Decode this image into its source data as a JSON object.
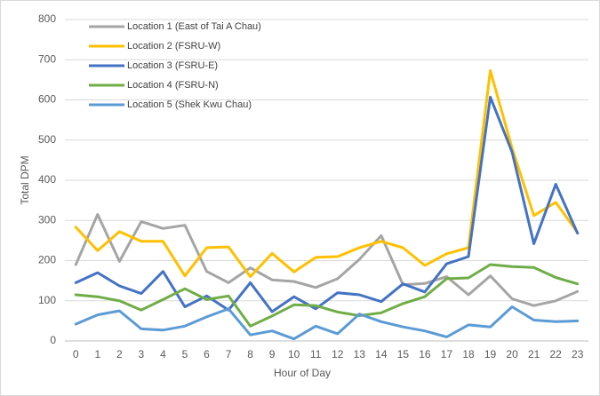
{
  "chart_data": {
    "type": "line",
    "x_label": "Hour of Day",
    "y_label": "Total DPM",
    "categories": [
      0,
      1,
      2,
      3,
      4,
      5,
      6,
      7,
      8,
      9,
      10,
      11,
      12,
      13,
      14,
      15,
      16,
      17,
      18,
      19,
      20,
      21,
      22,
      23
    ],
    "series": [
      {
        "name": "Location 1 (East of Tai A Chau)",
        "color": "#a5a5a5",
        "values": [
          190,
          315,
          198,
          297,
          280,
          288,
          173,
          145,
          182,
          152,
          148,
          133,
          155,
          203,
          262,
          140,
          143,
          160,
          115,
          162,
          105,
          88,
          100,
          123
        ]
      },
      {
        "name": "Location 2 (FSRU-W)",
        "color": "#ffc000",
        "values": [
          283,
          225,
          272,
          248,
          248,
          162,
          232,
          234,
          160,
          218,
          172,
          208,
          210,
          232,
          248,
          232,
          188,
          217,
          232,
          673,
          480,
          312,
          345,
          270
        ]
      },
      {
        "name": "Location 3 (FSRU-E)",
        "color": "#4472c4",
        "values": [
          145,
          170,
          137,
          118,
          173,
          85,
          112,
          77,
          145,
          73,
          110,
          80,
          120,
          115,
          98,
          142,
          122,
          192,
          210,
          607,
          470,
          242,
          390,
          268
        ]
      },
      {
        "name": "Location 4 (FSRU-N)",
        "color": "#70ad47",
        "values": [
          115,
          110,
          100,
          77,
          103,
          130,
          103,
          112,
          37,
          62,
          90,
          88,
          72,
          63,
          70,
          93,
          110,
          155,
          157,
          190,
          185,
          183,
          158,
          142
        ]
      },
      {
        "name": "Location 5 (Shek Kwu Chau)",
        "color": "#5b9bd5",
        "values": [
          42,
          65,
          75,
          30,
          27,
          37,
          60,
          80,
          15,
          25,
          5,
          37,
          18,
          67,
          48,
          35,
          25,
          10,
          40,
          35,
          85,
          52,
          48,
          50
        ]
      }
    ],
    "ylim": [
      0,
      800
    ],
    "yticks": [
      0,
      100,
      200,
      300,
      400,
      500,
      600,
      700,
      800
    ],
    "grid": true,
    "legend": "top-left"
  }
}
